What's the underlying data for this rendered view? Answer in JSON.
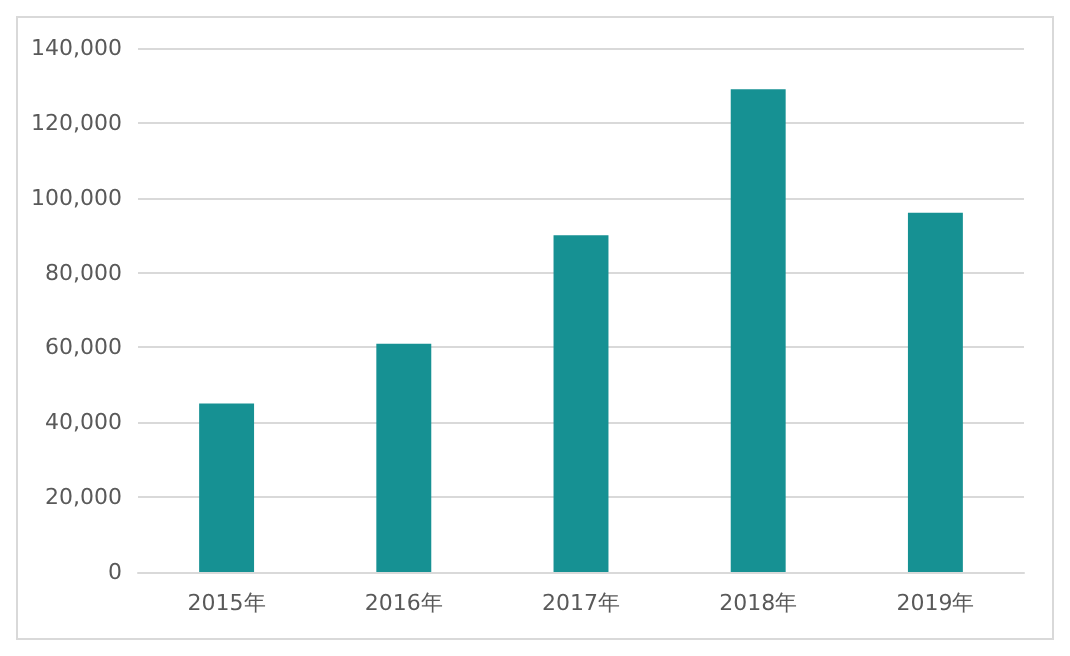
{
  "chart_data": {
    "type": "bar",
    "categories": [
      "2015年",
      "2016年",
      "2017年",
      "2018年",
      "2019年"
    ],
    "values": [
      45000,
      61000,
      90000,
      129000,
      96000
    ],
    "color": "#169193",
    "ylim": [
      0,
      140000
    ],
    "yticks": [
      {
        "value": 0,
        "label": "0"
      },
      {
        "value": 20000,
        "label": "20,000"
      },
      {
        "value": 40000,
        "label": "40,000"
      },
      {
        "value": 60000,
        "label": "60,000"
      },
      {
        "value": 80000,
        "label": "80,000"
      },
      {
        "value": 100000,
        "label": "100,000"
      },
      {
        "value": 120000,
        "label": "120,000"
      },
      {
        "value": 140000,
        "label": "140,000"
      }
    ],
    "grid": "y"
  }
}
